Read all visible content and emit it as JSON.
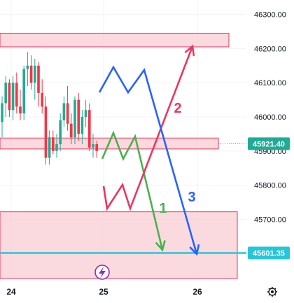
{
  "chart_data": {
    "type": "candlestick",
    "y_axis": {
      "ticks": [
        "46300.00",
        "46200.00",
        "46100.00",
        "46000.00",
        "45900.00",
        "45800.00",
        "45700.00",
        "45601.35"
      ],
      "range": [
        45520,
        46340
      ]
    },
    "x_axis": {
      "ticks": [
        "24",
        "25",
        "26"
      ]
    },
    "price_tags": [
      {
        "value": 45921.4,
        "label": "45921.40",
        "color": "#22ab94"
      },
      {
        "value": 45601.35,
        "label": "45601.35",
        "color": "#26c6da"
      }
    ],
    "zones": [
      {
        "name": "upper-resistance-zone",
        "top": 46245,
        "bottom": 46205
      },
      {
        "name": "mid-zone",
        "top": 45938,
        "bottom": 45906
      },
      {
        "name": "lower-demand-zone",
        "top": 45722,
        "bottom": 45520
      }
    ],
    "horizontal_lines": [
      {
        "name": "support-line",
        "value": 45601.35,
        "color": "#26c6da"
      }
    ],
    "candles": [
      {
        "o": 45985,
        "h": 46060,
        "l": 45940,
        "c": 46040
      },
      {
        "o": 46040,
        "h": 46120,
        "l": 46000,
        "c": 46100
      },
      {
        "o": 46100,
        "h": 46110,
        "l": 46000,
        "c": 46020
      },
      {
        "o": 46020,
        "h": 46120,
        "l": 45990,
        "c": 46100
      },
      {
        "o": 46100,
        "h": 46130,
        "l": 46010,
        "c": 46030
      },
      {
        "o": 46030,
        "h": 46080,
        "l": 45990,
        "c": 46010
      },
      {
        "o": 46010,
        "h": 46150,
        "l": 45990,
        "c": 46140
      },
      {
        "o": 46140,
        "h": 46190,
        "l": 46090,
        "c": 46150
      },
      {
        "o": 46150,
        "h": 46180,
        "l": 46080,
        "c": 46100
      },
      {
        "o": 46100,
        "h": 46170,
        "l": 46050,
        "c": 46150
      },
      {
        "o": 46150,
        "h": 46160,
        "l": 46030,
        "c": 46070
      },
      {
        "o": 46070,
        "h": 46110,
        "l": 46010,
        "c": 46030
      },
      {
        "o": 46030,
        "h": 46060,
        "l": 45860,
        "c": 45880
      },
      {
        "o": 45880,
        "h": 45960,
        "l": 45860,
        "c": 45940
      },
      {
        "o": 45940,
        "h": 45960,
        "l": 45890,
        "c": 45900
      },
      {
        "o": 45900,
        "h": 45950,
        "l": 45880,
        "c": 45920
      },
      {
        "o": 45920,
        "h": 46010,
        "l": 45900,
        "c": 45990
      },
      {
        "o": 45990,
        "h": 46060,
        "l": 45970,
        "c": 46040
      },
      {
        "o": 46040,
        "h": 46090,
        "l": 45960,
        "c": 45980
      },
      {
        "o": 45980,
        "h": 46010,
        "l": 45920,
        "c": 45940
      },
      {
        "o": 45940,
        "h": 46060,
        "l": 45920,
        "c": 46050
      },
      {
        "o": 46050,
        "h": 46070,
        "l": 45930,
        "c": 45950
      },
      {
        "o": 45950,
        "h": 46020,
        "l": 45920,
        "c": 46000
      },
      {
        "o": 46000,
        "h": 46050,
        "l": 45970,
        "c": 46020
      },
      {
        "o": 46020,
        "h": 46040,
        "l": 45900,
        "c": 45910
      },
      {
        "o": 45910,
        "h": 45950,
        "l": 45880,
        "c": 45920
      },
      {
        "o": 45920,
        "h": 45930,
        "l": 45880,
        "c": 45900
      }
    ],
    "scenario_paths": [
      {
        "label": "1",
        "color": "#4caf50",
        "points": [
          [
            146,
            227
          ],
          [
            162,
            190
          ],
          [
            176,
            227
          ],
          [
            193,
            195
          ],
          [
            232,
            357
          ]
        ]
      },
      {
        "label": "2",
        "color": "#e9375f",
        "points": [
          [
            148,
            266
          ],
          [
            153,
            298
          ],
          [
            175,
            264
          ],
          [
            186,
            298
          ],
          [
            275,
            66
          ]
        ]
      },
      {
        "label": "3",
        "color": "#2962ff",
        "points": [
          [
            142,
            132
          ],
          [
            162,
            96
          ],
          [
            183,
            132
          ],
          [
            206,
            100
          ],
          [
            281,
            363
          ]
        ]
      }
    ],
    "path_labels": [
      {
        "label": "1",
        "color": "#4caf50"
      },
      {
        "label": "2",
        "color": "#e9375f"
      },
      {
        "label": "3",
        "color": "#2962ff"
      }
    ],
    "colors": {
      "up": "#22ab94",
      "down": "#f23645",
      "grid": "#f0f3fa"
    },
    "icons": {
      "event": "lightning-icon",
      "settings": "gear-icon"
    }
  }
}
